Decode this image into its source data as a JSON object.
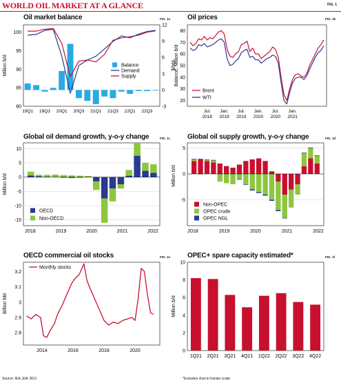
{
  "header": {
    "title": "WORLD OIL MARKET AT A GLANCE",
    "fig": "FIG. 1"
  },
  "footer": {
    "source": "Source: IEA, EIA, BOJ",
    "note": "*Excludes shut-in Iranian crude"
  },
  "colors": {
    "red": "#c8102e",
    "navy": "#2b3990",
    "lightblue": "#29abe2",
    "green": "#8dc63f",
    "grid": "#cfcfcf"
  },
  "chart_data": [
    {
      "id": "balance",
      "type": "bar+line",
      "title": "Oil market balance",
      "fig": "FIG. 1a",
      "ylabel": "Million b/d",
      "y2label": "Balance, Million b/d",
      "ylim": [
        80,
        102
      ],
      "yticks": [
        80,
        85,
        90,
        95,
        100
      ],
      "y2lim": [
        -3,
        12
      ],
      "y2ticks": [
        -3,
        0,
        3,
        6,
        9,
        12
      ],
      "xticks": [
        "19Q1",
        "19Q3",
        "20Q1",
        "20Q3",
        "21Q1",
        "21Q3",
        "22Q1",
        "22Q3"
      ],
      "legend": [
        "Balance",
        "Demand",
        "Supply"
      ],
      "quarters": [
        "19Q1",
        "19Q2",
        "19Q3",
        "19Q4",
        "20Q1",
        "20Q2",
        "20Q3",
        "20Q4",
        "21Q1",
        "21Q2",
        "21Q3",
        "21Q4",
        "22Q1",
        "22Q2",
        "22Q3",
        "22Q4"
      ],
      "balance": [
        1.2,
        0.9,
        -0.3,
        0.4,
        3.5,
        8.5,
        -1.5,
        -2.0,
        -2.6,
        -1.2,
        -1.5,
        -0.3,
        -0.7,
        -0.2,
        -0.2,
        -0.1
      ],
      "demand": [
        99.2,
        99.4,
        100.5,
        100.8,
        93.5,
        83.5,
        91.0,
        92.5,
        93.5,
        95.5,
        97.5,
        99.0,
        98.5,
        99.5,
        100.2,
        100.5
      ],
      "supply": [
        100.3,
        100.3,
        100.8,
        101.0,
        97.0,
        88.0,
        92.2,
        92.5,
        92.0,
        94.0,
        97.8,
        98.5,
        98.8,
        99.2,
        100.0,
        100.4
      ]
    },
    {
      "id": "prices",
      "type": "line",
      "title": "Oil prices",
      "fig": "FIG. 1b",
      "ylabel": "$/bbl",
      "ylim": [
        15,
        85
      ],
      "yticks": [
        20,
        30,
        40,
        50,
        60,
        70,
        80
      ],
      "xticks": [
        "Jul. 2018",
        "Jan. 2019",
        "Jul. 2019",
        "Jan. 2020",
        "Jul. 2020",
        "Jan. 2021"
      ],
      "legend": [
        "Brent",
        "WTI"
      ],
      "brent": [
        70,
        67,
        69,
        73,
        72,
        75,
        72,
        74,
        73,
        76,
        79,
        80,
        77,
        64,
        58,
        57,
        60,
        62,
        68,
        69,
        71,
        62,
        65,
        60,
        60,
        56,
        58,
        60,
        62,
        66,
        64,
        57,
        40,
        25,
        20,
        30,
        38,
        42,
        43,
        41,
        40,
        43,
        50,
        55,
        60,
        65,
        68,
        72
      ],
      "wti": [
        65,
        63,
        64,
        68,
        67,
        69,
        66,
        67,
        68,
        70,
        72,
        73,
        70,
        56,
        50,
        51,
        54,
        56,
        61,
        63,
        64,
        57,
        58,
        55,
        55,
        52,
        54,
        56,
        57,
        59,
        58,
        52,
        35,
        20,
        17,
        27,
        35,
        39,
        40,
        40,
        38,
        41,
        47,
        52,
        57,
        61,
        63,
        67
      ]
    },
    {
      "id": "demand_growth",
      "type": "stacked-bar",
      "title": "Global oil demand growth, y-o-y change",
      "fig": "FIG. 1c",
      "ylabel": "Million b/d",
      "ylim": [
        -17,
        12
      ],
      "yticks": [
        -15,
        -10,
        -5,
        0,
        5,
        10
      ],
      "xticks": [
        "2018",
        "2019",
        "2020",
        "2021",
        "2022"
      ],
      "legend": [
        "OECD",
        "Non-OECD"
      ],
      "quarters": [
        "18Q1",
        "18Q2",
        "18Q3",
        "18Q4",
        "19Q1",
        "19Q2",
        "19Q3",
        "19Q4",
        "20Q1",
        "20Q2",
        "20Q3",
        "20Q4",
        "21Q1",
        "21Q2",
        "21Q3",
        "21Q4"
      ],
      "oecd": [
        0.6,
        0.3,
        0.2,
        0.1,
        -0.2,
        -0.3,
        -0.2,
        -0.1,
        -1.5,
        -7.5,
        -4.0,
        -2.5,
        0.5,
        7.5,
        2.2,
        1.5
      ],
      "non_oecd": [
        1.3,
        0.5,
        0.6,
        0.8,
        0.7,
        0.6,
        0.5,
        0.4,
        -3.0,
        -8.5,
        -4.5,
        -1.5,
        2.0,
        4.5,
        2.8,
        3.0
      ]
    },
    {
      "id": "supply_growth",
      "type": "stacked-bar",
      "title": "Global oil supply growth, y-o-y change",
      "fig": "FIG. 1d",
      "ylabel": "Million b/d",
      "ylim": [
        -10,
        6
      ],
      "yticks": [
        -5,
        0,
        5
      ],
      "xticks": [
        "2018",
        "2019",
        "2020",
        "2021",
        "2022"
      ],
      "legend": [
        "Non-OPEC",
        "OPEC crude",
        "OPEC NGL"
      ],
      "quarters": [
        "18Q1",
        "18Q2",
        "18Q3",
        "18Q4",
        "19Q1",
        "19Q2",
        "19Q3",
        "19Q4",
        "20Q1",
        "20Q2",
        "20Q3",
        "20Q4",
        "21Q1",
        "21Q2",
        "21Q3",
        "21Q4",
        "22Q1",
        "22Q2",
        "22Q3",
        "22Q4"
      ],
      "non_opec": [
        2.5,
        2.8,
        2.5,
        2.2,
        2.0,
        1.5,
        1.2,
        1.8,
        2.5,
        2.8,
        3.0,
        2.5,
        0.5,
        -1.5,
        -4.0,
        -3.0,
        -2.0,
        1.5,
        3.0,
        2.0
      ],
      "opec_crude": [
        0.3,
        -0.1,
        0.2,
        0.4,
        -1.5,
        -1.8,
        -2.0,
        -1.0,
        -2.0,
        -3.0,
        -3.5,
        -4.0,
        -5.0,
        -5.5,
        -4.5,
        -3.5,
        -2.0,
        2.5,
        2.0,
        1.5
      ],
      "opec_ngl": [
        0.1,
        0.1,
        0.1,
        0.1,
        0.0,
        0.0,
        0.0,
        -0.1,
        -0.1,
        -0.2,
        -0.2,
        -0.2,
        -0.2,
        -0.2,
        -0.1,
        0.0,
        0.0,
        0.1,
        0.1,
        0.1
      ]
    },
    {
      "id": "oecd_stocks",
      "type": "line",
      "title": "OECD commercial oil stocks",
      "fig": "FIG. 1e",
      "ylabel": "Billion bbl",
      "ylim": [
        2.72,
        3.26
      ],
      "yticks": [
        2.8,
        2.9,
        3.0,
        3.1,
        3.2
      ],
      "xticks": [
        "2014",
        "2016",
        "2018",
        "2020"
      ],
      "xlim": [
        2012.8,
        2021.6
      ],
      "legend": [
        "Monthly stocks"
      ],
      "x": [
        2013.0,
        2013.3,
        2013.6,
        2013.9,
        2014.1,
        2014.3,
        2014.5,
        2014.8,
        2015.0,
        2015.3,
        2015.6,
        2015.9,
        2016.1,
        2016.4,
        2016.7,
        2016.9,
        2017.1,
        2017.4,
        2017.7,
        2018.0,
        2018.3,
        2018.6,
        2018.9,
        2019.2,
        2019.5,
        2019.8,
        2020.0,
        2020.2,
        2020.4,
        2020.6,
        2020.8,
        2021.0,
        2021.2
      ],
      "y": [
        2.91,
        2.89,
        2.92,
        2.9,
        2.78,
        2.77,
        2.81,
        2.86,
        2.92,
        2.98,
        3.05,
        3.12,
        3.15,
        3.18,
        3.25,
        3.14,
        3.09,
        3.02,
        2.95,
        2.88,
        2.85,
        2.87,
        2.86,
        2.88,
        2.89,
        2.9,
        2.88,
        3.02,
        3.22,
        3.2,
        3.05,
        2.93,
        2.92
      ]
    },
    {
      "id": "spare_capacity",
      "type": "bar",
      "title": "OPEC+ spare capacity estimated*",
      "fig": "FIG. 1f",
      "ylabel": "Million b/d",
      "ylim": [
        0,
        10
      ],
      "yticks": [
        0,
        2,
        4,
        6,
        8,
        10
      ],
      "categories": [
        "1Q21",
        "2Q21",
        "3Q21",
        "4Q21",
        "1Q22",
        "2Q22",
        "3Q22",
        "4Q22"
      ],
      "values": [
        8.2,
        8.1,
        6.3,
        4.9,
        6.2,
        6.5,
        5.5,
        5.2
      ]
    }
  ]
}
